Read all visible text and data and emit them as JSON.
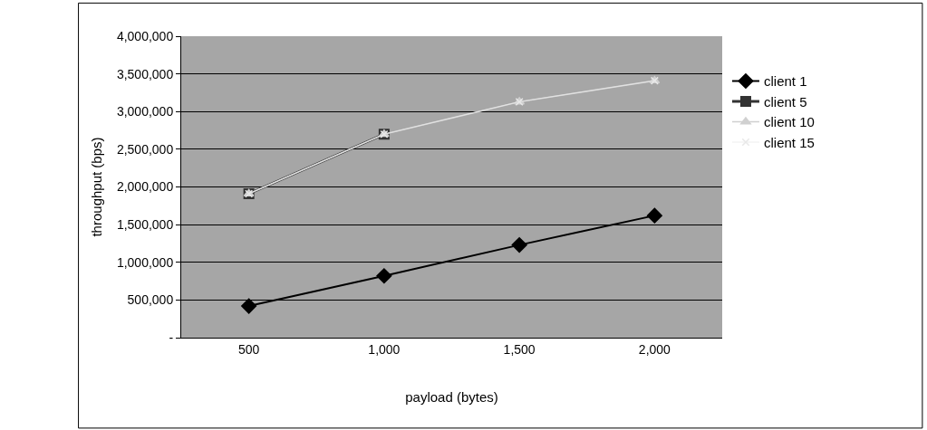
{
  "chart_data": {
    "type": "line",
    "xlabel": "payload (bytes)",
    "ylabel": "throughput (bps)",
    "categories": [
      "500",
      "1,000",
      "1,500",
      "2,000"
    ],
    "ylim": [
      0,
      4000000
    ],
    "yticks": [
      {
        "value": 0,
        "label": "-"
      },
      {
        "value": 500000,
        "label": "500,000"
      },
      {
        "value": 1000000,
        "label": "1,000,000"
      },
      {
        "value": 1500000,
        "label": "1,500,000"
      },
      {
        "value": 2000000,
        "label": "2,000,000"
      },
      {
        "value": 2500000,
        "label": "2,500,000"
      },
      {
        "value": 3000000,
        "label": "3,000,000"
      },
      {
        "value": 3500000,
        "label": "3,500,000"
      },
      {
        "value": 4000000,
        "label": "4,000,000"
      }
    ],
    "grid": "y",
    "legend": "right",
    "series": [
      {
        "name": "client 1",
        "color": "#000000",
        "marker": "diamond",
        "values": [
          420000,
          820000,
          1230000,
          1620000
        ]
      },
      {
        "name": "client 5",
        "color": "#333333",
        "marker": "square",
        "values": [
          1910000,
          2700000,
          null,
          null
        ]
      },
      {
        "name": "client 10",
        "color": "#d0d0d0",
        "marker": "triangle",
        "values": [
          1910000,
          2700000,
          3130000,
          3410000
        ]
      },
      {
        "name": "client 15",
        "color": "#e8e8e8",
        "marker": "cross",
        "values": [
          1910000,
          2700000,
          3130000,
          3410000
        ]
      }
    ]
  }
}
